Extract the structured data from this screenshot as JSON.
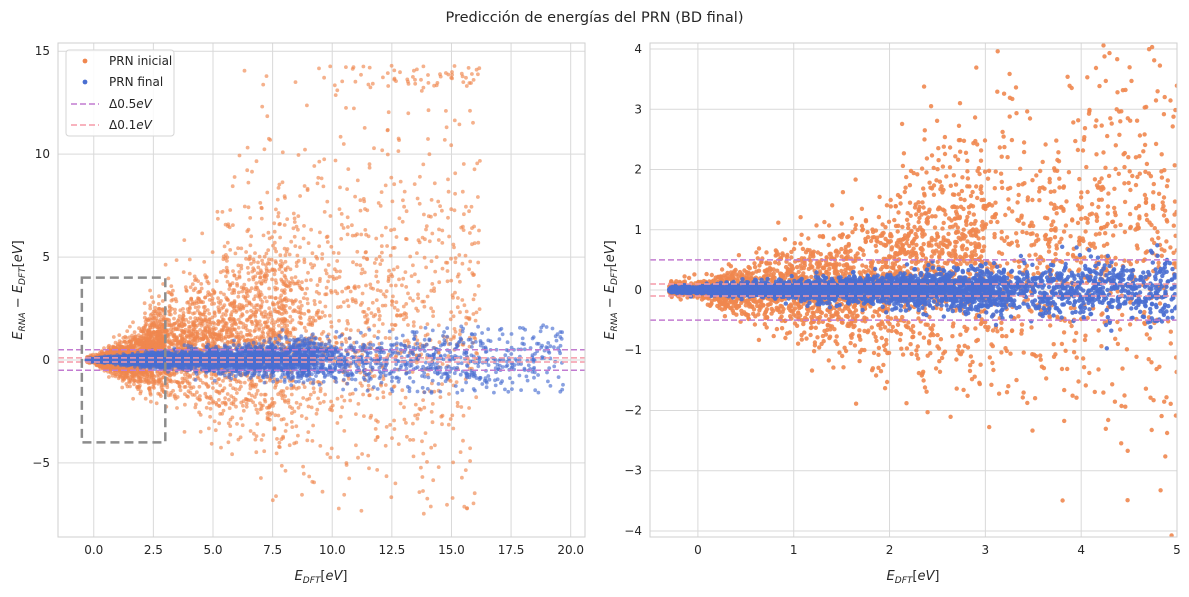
{
  "figure": {
    "title": "Predicción de energías del PRN (BD final)"
  },
  "colors": {
    "inicial": "#f0874f",
    "final": "#4a6fd1",
    "line_05": "#c27bd0",
    "line_01": "#f59aa8",
    "box": "#8c8c8c",
    "grid": "#d9d9d9",
    "spine": "#cfcfcf"
  },
  "chart_data": [
    {
      "type": "scatter",
      "xlabel": "E_DFT[eV]",
      "ylabel": "E_RNA − E_DFT[eV]",
      "xlim": [
        -1.5,
        20.6
      ],
      "ylim": [
        -8.6,
        15.4
      ],
      "grid": true,
      "legend_position": "top-left",
      "x_ticks": [
        0.0,
        2.5,
        5.0,
        7.5,
        10.0,
        12.5,
        15.0,
        17.5,
        20.0
      ],
      "x_tick_labels": [
        "0.0",
        "2.5",
        "5.0",
        "7.5",
        "10.0",
        "12.5",
        "15.0",
        "17.5",
        "20.0"
      ],
      "y_ticks": [
        -5,
        0,
        5,
        10,
        15
      ],
      "y_tick_labels": [
        "−5",
        "0",
        "5",
        "10",
        "15"
      ],
      "hlines": [
        {
          "y": 0.5,
          "style": "line_05"
        },
        {
          "y": -0.5,
          "style": "line_05"
        },
        {
          "y": 0.1,
          "style": "line_01"
        },
        {
          "y": -0.1,
          "style": "line_01"
        }
      ],
      "zoom_box": {
        "x": [
          -0.5,
          3.0
        ],
        "y": [
          -4.0,
          4.0
        ]
      },
      "series": [
        {
          "name": "PRN inicial",
          "color_key": "inicial",
          "points": "scatter, x ≈ 0–16, y ≈ −7.5 to 14.3, spread grows with x"
        },
        {
          "name": "PRN final",
          "color_key": "final",
          "points": "scatter, x ≈ −0.3–19.7, y ≈ −1.6 to 1.7, tightly around 0"
        }
      ],
      "legend": [
        {
          "label": "PRN inicial",
          "kind": "marker",
          "color_key": "inicial"
        },
        {
          "label": "PRN final",
          "kind": "marker",
          "color_key": "final"
        },
        {
          "label": "Δ0.5eV",
          "kind": "dashed",
          "color_key": "line_05"
        },
        {
          "label": "Δ0.1eV",
          "kind": "dashed",
          "color_key": "line_01"
        }
      ]
    },
    {
      "type": "scatter",
      "xlabel": "E_DFT[eV]",
      "ylabel": "E_RNA − E_DFT[eV]",
      "xlim": [
        -0.5,
        5.0
      ],
      "ylim": [
        -4.1,
        4.1
      ],
      "grid": true,
      "x_ticks": [
        0,
        1,
        2,
        3,
        4,
        5
      ],
      "x_tick_labels": [
        "0",
        "1",
        "2",
        "3",
        "4",
        "5"
      ],
      "y_ticks": [
        -4,
        -3,
        -2,
        -1,
        0,
        1,
        2,
        3,
        4
      ],
      "y_tick_labels": [
        "−4",
        "−3",
        "−2",
        "−1",
        "0",
        "1",
        "2",
        "3",
        "4"
      ],
      "hlines": [
        {
          "y": 0.5,
          "style": "line_05"
        },
        {
          "y": -0.5,
          "style": "line_05"
        },
        {
          "y": 0.1,
          "style": "line_01"
        },
        {
          "y": -0.1,
          "style": "line_01"
        }
      ],
      "series": [
        {
          "name": "PRN inicial",
          "color_key": "inicial",
          "points": "zoomed view of the same scatter"
        },
        {
          "name": "PRN final",
          "color_key": "final",
          "points": "zoomed view of the same scatter"
        }
      ]
    }
  ]
}
